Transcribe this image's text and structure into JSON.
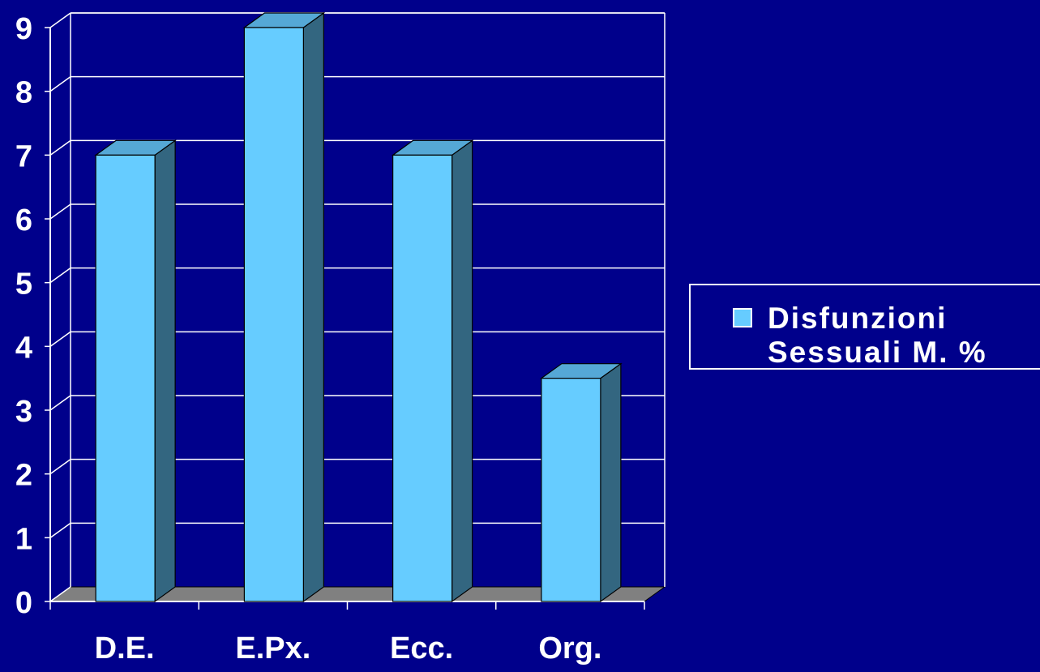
{
  "chart_data": {
    "type": "bar",
    "categories": [
      "D.E.",
      "E.Px.",
      "Ecc.",
      "Org."
    ],
    "series": [
      {
        "name": "Disfunzioni Sessuali M. %",
        "values": [
          7,
          9,
          7,
          3.5
        ]
      }
    ],
    "yticks": [
      "0",
      "1",
      "2",
      "3",
      "4",
      "5",
      "6",
      "7",
      "8",
      "9"
    ],
    "ylim": [
      0,
      9
    ],
    "grid": true,
    "legend": "right",
    "style_3d": true,
    "colors": {
      "background": "#00008B",
      "bar_front": "#66CCFF",
      "bar_side": "#336680",
      "bar_top": "#55A8D6",
      "floor": "#808080",
      "axis": "#FFFFFF"
    }
  },
  "legend": {
    "line1": "Disfunzioni",
    "line2": "Sessuali M. %"
  }
}
